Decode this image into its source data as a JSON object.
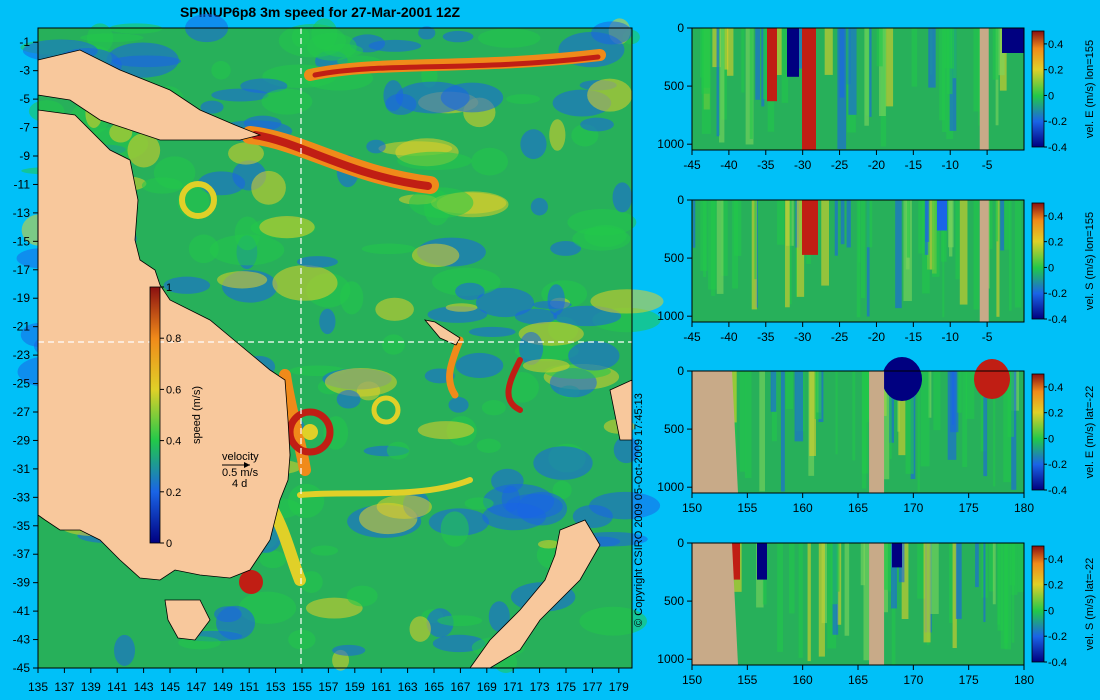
{
  "title": "SPINUP6p8 3m speed for 27-Mar-2001 12Z",
  "copyright": "© Copyright CSIRO 2009  05-Oct-2009 17:45:13",
  "colors": {
    "background": "#00c0f8",
    "land": "#f8c89c",
    "section_land": "#c8aa88",
    "slow": "#1a64e6",
    "medium": "#22c84a",
    "fast": "#e0d028",
    "faster": "#f08a1a",
    "fastest": "#c01e14"
  },
  "map": {
    "x_ticks": [
      "135",
      "137",
      "139",
      "141",
      "143",
      "145",
      "147",
      "149",
      "151",
      "153",
      "155",
      "157",
      "159",
      "161",
      "163",
      "165",
      "167",
      "169",
      "171",
      "173",
      "175",
      "177",
      "179"
    ],
    "y_ticks": [
      "-1",
      "-3",
      "-5",
      "-7",
      "-9",
      "-11",
      "-13",
      "-15",
      "-17",
      "-19",
      "-21",
      "-23",
      "-25",
      "-27",
      "-29",
      "-31",
      "-33",
      "-35",
      "-37",
      "-39",
      "-41",
      "-43",
      "-45"
    ],
    "section_lon": 155,
    "section_lat": -22,
    "colorbar": {
      "label": "speed (m/s)",
      "range": [
        0,
        1
      ],
      "ticks": [
        "1",
        "0.8",
        "0.6",
        "0.4",
        "0.2",
        "0"
      ]
    },
    "velocity_key": {
      "label": "velocity",
      "speed": "0.5 m/s",
      "interval": "4 d"
    }
  },
  "chart_data": [
    {
      "type": "heatmap",
      "title": "SPINUP6p8 3m speed for 27-Mar-2001 12Z",
      "xlim": [
        135,
        180
      ],
      "ylim": [
        -45,
        0
      ],
      "colorbar_label": "speed (m/s)",
      "colorbar_range": [
        0,
        1
      ]
    },
    {
      "type": "heatmap",
      "colorbar_label": "vel. E (m/s) lon=155",
      "xlim": [
        -45,
        0
      ],
      "ylim": [
        1050,
        0
      ],
      "x_ticks": [
        "-45",
        "-40",
        "-35",
        "-30",
        "-25",
        "-20",
        "-15",
        "-10",
        "-5"
      ],
      "y_ticks": [
        "0",
        "500",
        "1000"
      ],
      "colorbar_range": [
        -0.4,
        0.5
      ],
      "colorbar_ticks": [
        "0.4",
        "0.2",
        "0",
        "-0.2",
        "-0.4"
      ]
    },
    {
      "type": "heatmap",
      "colorbar_label": "vel. S (m/s) lon=155",
      "xlim": [
        -45,
        0
      ],
      "ylim": [
        1050,
        0
      ],
      "x_ticks": [
        "-45",
        "-40",
        "-35",
        "-30",
        "-25",
        "-20",
        "-15",
        "-10",
        "-5"
      ],
      "y_ticks": [
        "0",
        "500",
        "1000"
      ],
      "colorbar_range": [
        -0.4,
        0.5
      ],
      "colorbar_ticks": [
        "0.4",
        "0.2",
        "0",
        "-0.2",
        "-0.4"
      ]
    },
    {
      "type": "heatmap",
      "colorbar_label": "vel. E (m/s) lat=-22",
      "xlim": [
        150,
        180
      ],
      "ylim": [
        1050,
        0
      ],
      "x_ticks": [
        "150",
        "155",
        "160",
        "165",
        "170",
        "175",
        "180"
      ],
      "y_ticks": [
        "0",
        "500",
        "1000"
      ],
      "colorbar_range": [
        -0.4,
        0.5
      ],
      "colorbar_ticks": [
        "0.4",
        "0.2",
        "0",
        "-0.2",
        "-0.4"
      ]
    },
    {
      "type": "heatmap",
      "colorbar_label": "vel. S (m/s) lat=-22",
      "xlim": [
        150,
        180
      ],
      "ylim": [
        1050,
        0
      ],
      "x_ticks": [
        "150",
        "155",
        "160",
        "165",
        "170",
        "175",
        "180"
      ],
      "y_ticks": [
        "0",
        "500",
        "1000"
      ],
      "colorbar_range": [
        -0.4,
        0.5
      ],
      "colorbar_ticks": [
        "0.4",
        "0.2",
        "0",
        "-0.2",
        "-0.4"
      ]
    }
  ]
}
